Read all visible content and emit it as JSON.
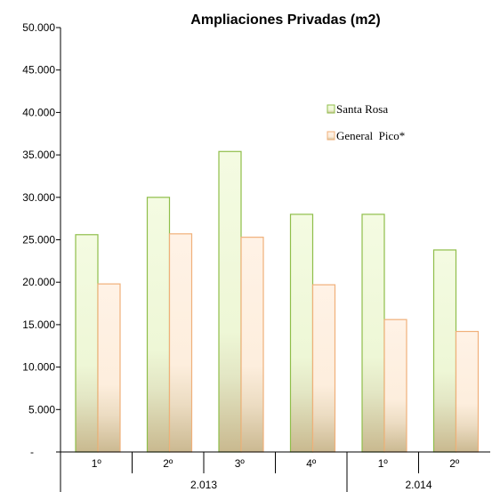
{
  "chart_data": {
    "type": "bar",
    "title": "Ampliaciones Privadas (m2)",
    "xlabel": "",
    "ylabel": "",
    "ylim": [
      0,
      50000
    ],
    "y_ticks": [
      "-",
      "5.000",
      "10.000",
      "15.000",
      "20.000",
      "25.000",
      "30.000",
      "35.000",
      "40.000",
      "45.000",
      "50.000"
    ],
    "categories": [
      "1º",
      "2º",
      "3º",
      "4º",
      "1º",
      "2º"
    ],
    "groups": [
      {
        "label": "2.013",
        "span": 4
      },
      {
        "label": "2.014",
        "span": 2
      }
    ],
    "series": [
      {
        "name": "Santa Rosa",
        "values": [
          25600,
          30000,
          35400,
          28000,
          28000,
          23800
        ],
        "color": "#8fbe4a"
      },
      {
        "name": "General  Pico*",
        "values": [
          19800,
          25700,
          25300,
          19700,
          15600,
          14200
        ],
        "color": "#f0b07a"
      }
    ],
    "legend_position": "top-right",
    "grid": false
  }
}
